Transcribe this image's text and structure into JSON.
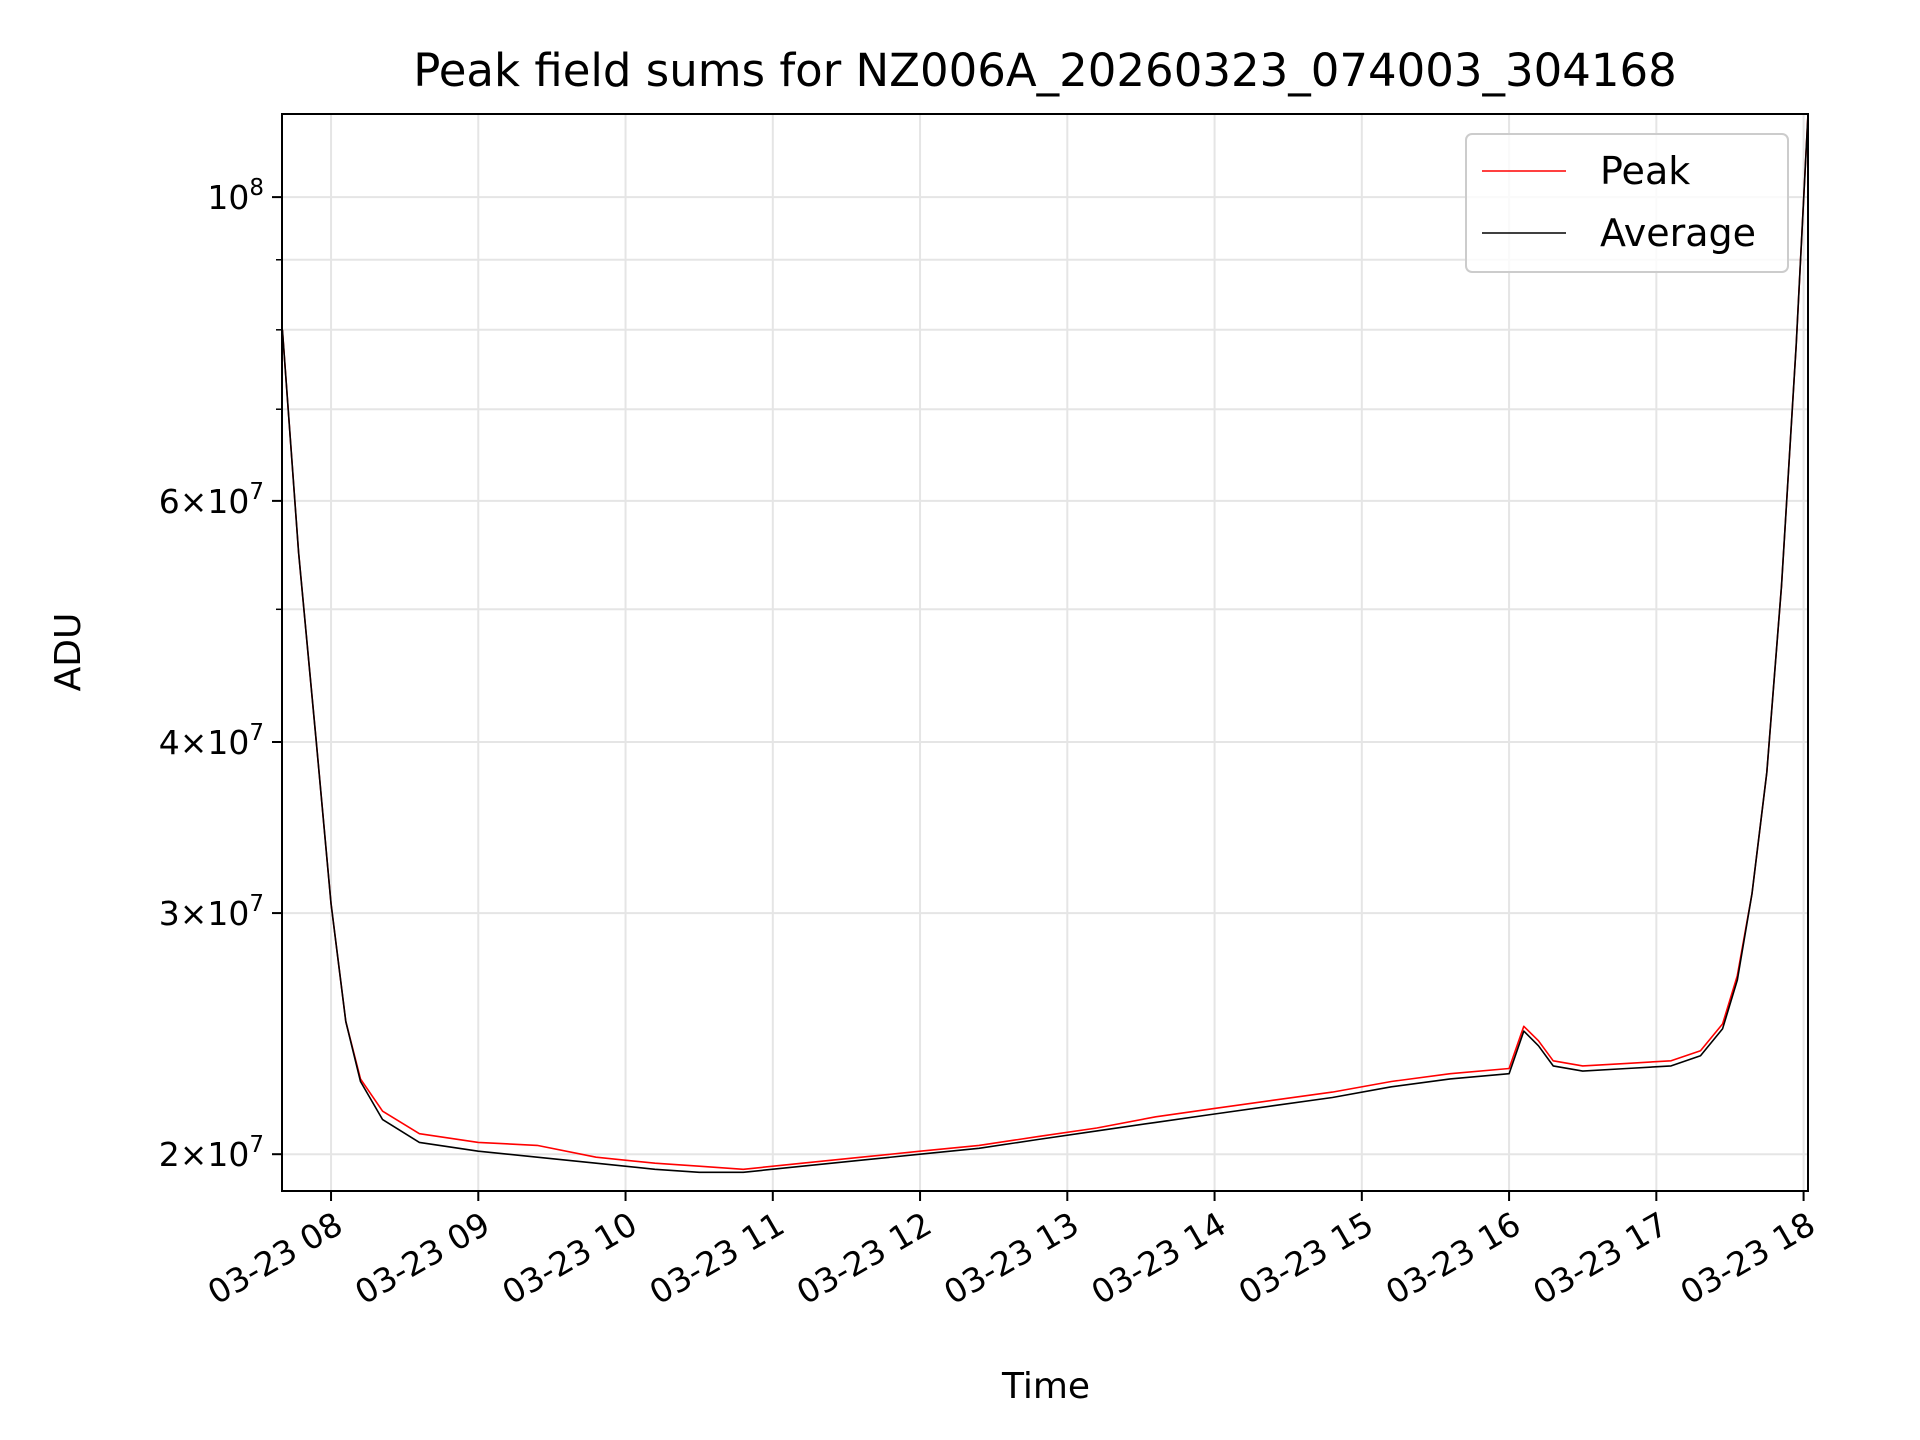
{
  "chart_data": {
    "type": "line",
    "title": "Peak field sums for NZ006A_20260323_074003_304168",
    "xlabel": "Time",
    "ylabel": "ADU",
    "y_scale": "log",
    "ylim": [
      18800000,
      115000000
    ],
    "xlim_hours": [
      7.667,
      18.03
    ],
    "grid": true,
    "legend_position": "top-right",
    "x_ticks": [
      {
        "hour": 8,
        "label": "03-23 08"
      },
      {
        "hour": 9,
        "label": "03-23 09"
      },
      {
        "hour": 10,
        "label": "03-23 10"
      },
      {
        "hour": 11,
        "label": "03-23 11"
      },
      {
        "hour": 12,
        "label": "03-23 12"
      },
      {
        "hour": 13,
        "label": "03-23 13"
      },
      {
        "hour": 14,
        "label": "03-23 14"
      },
      {
        "hour": 15,
        "label": "03-23 15"
      },
      {
        "hour": 16,
        "label": "03-23 16"
      },
      {
        "hour": 17,
        "label": "03-23 17"
      },
      {
        "hour": 18,
        "label": "03-23 18"
      }
    ],
    "y_ticks": [
      {
        "value": 20000000,
        "mantissa": "2",
        "exponent": "7"
      },
      {
        "value": 30000000,
        "mantissa": "3",
        "exponent": "7"
      },
      {
        "value": 40000000,
        "mantissa": "4",
        "exponent": "7"
      },
      {
        "value": 60000000,
        "mantissa": "6",
        "exponent": "7"
      },
      {
        "value": 100000000,
        "mantissa": "",
        "exponent": "8"
      }
    ],
    "y_minor_ticks": [
      50000000,
      70000000,
      80000000,
      90000000
    ],
    "series": [
      {
        "name": "Peak",
        "color": "#ff0000",
        "points": [
          [
            7.67,
            80000000
          ],
          [
            7.78,
            55000000
          ],
          [
            7.9,
            40000000
          ],
          [
            8.0,
            30500000
          ],
          [
            8.1,
            25000000
          ],
          [
            8.2,
            22700000
          ],
          [
            8.35,
            21500000
          ],
          [
            8.6,
            20700000
          ],
          [
            9.0,
            20400000
          ],
          [
            9.4,
            20300000
          ],
          [
            9.8,
            19900000
          ],
          [
            10.2,
            19700000
          ],
          [
            10.5,
            19600000
          ],
          [
            10.8,
            19500000
          ],
          [
            11.2,
            19700000
          ],
          [
            11.6,
            19900000
          ],
          [
            12.0,
            20100000
          ],
          [
            12.4,
            20300000
          ],
          [
            12.8,
            20600000
          ],
          [
            13.2,
            20900000
          ],
          [
            13.6,
            21300000
          ],
          [
            14.0,
            21600000
          ],
          [
            14.4,
            21900000
          ],
          [
            14.8,
            22200000
          ],
          [
            15.2,
            22600000
          ],
          [
            15.6,
            22900000
          ],
          [
            16.0,
            23100000
          ],
          [
            16.1,
            24800000
          ],
          [
            16.2,
            24200000
          ],
          [
            16.3,
            23400000
          ],
          [
            16.5,
            23200000
          ],
          [
            16.8,
            23300000
          ],
          [
            17.1,
            23400000
          ],
          [
            17.3,
            23800000
          ],
          [
            17.45,
            24900000
          ],
          [
            17.55,
            27000000
          ],
          [
            17.65,
            31000000
          ],
          [
            17.75,
            38000000
          ],
          [
            17.85,
            52000000
          ],
          [
            17.95,
            78000000
          ],
          [
            18.03,
            115000000
          ]
        ]
      },
      {
        "name": "Average",
        "color": "#000000",
        "points": [
          [
            7.67,
            80000000
          ],
          [
            7.78,
            55000000
          ],
          [
            7.9,
            40000000
          ],
          [
            8.0,
            30500000
          ],
          [
            8.1,
            25000000
          ],
          [
            8.2,
            22600000
          ],
          [
            8.35,
            21200000
          ],
          [
            8.6,
            20400000
          ],
          [
            9.0,
            20100000
          ],
          [
            9.4,
            19900000
          ],
          [
            9.8,
            19700000
          ],
          [
            10.2,
            19500000
          ],
          [
            10.5,
            19400000
          ],
          [
            10.8,
            19400000
          ],
          [
            11.2,
            19600000
          ],
          [
            11.6,
            19800000
          ],
          [
            12.0,
            20000000
          ],
          [
            12.4,
            20200000
          ],
          [
            12.8,
            20500000
          ],
          [
            13.2,
            20800000
          ],
          [
            13.6,
            21100000
          ],
          [
            14.0,
            21400000
          ],
          [
            14.4,
            21700000
          ],
          [
            14.8,
            22000000
          ],
          [
            15.2,
            22400000
          ],
          [
            15.6,
            22700000
          ],
          [
            16.0,
            22900000
          ],
          [
            16.1,
            24600000
          ],
          [
            16.2,
            24000000
          ],
          [
            16.3,
            23200000
          ],
          [
            16.5,
            23000000
          ],
          [
            16.8,
            23100000
          ],
          [
            17.1,
            23200000
          ],
          [
            17.3,
            23600000
          ],
          [
            17.45,
            24700000
          ],
          [
            17.55,
            26800000
          ],
          [
            17.65,
            31000000
          ],
          [
            17.75,
            38000000
          ],
          [
            17.85,
            52000000
          ],
          [
            17.95,
            78000000
          ],
          [
            18.03,
            115000000
          ]
        ]
      }
    ]
  }
}
